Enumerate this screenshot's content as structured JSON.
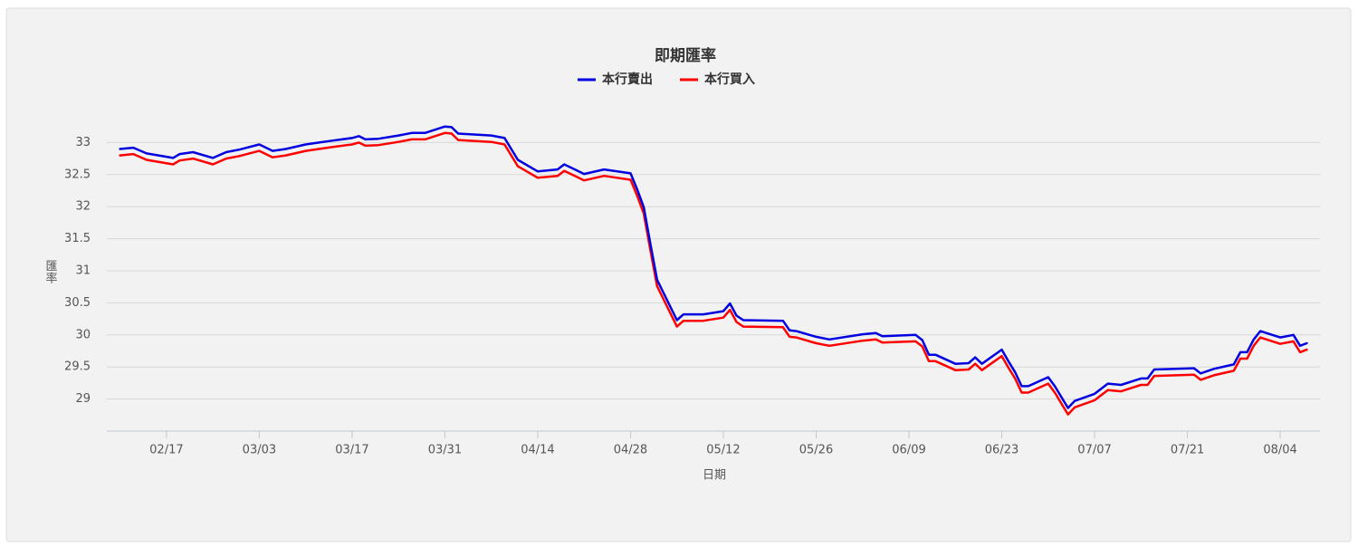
{
  "chart_data": {
    "type": "line",
    "title": "即期匯率",
    "x_label": "日期",
    "y_label": "匯率",
    "x": [
      "02/10",
      "02/12",
      "02/14",
      "02/18",
      "02/19",
      "02/21",
      "02/24",
      "02/26",
      "02/28",
      "03/03",
      "03/05",
      "03/07",
      "03/10",
      "03/12",
      "03/14",
      "03/17",
      "03/18",
      "03/19",
      "03/21",
      "03/24",
      "03/26",
      "03/28",
      "03/31",
      "04/01",
      "04/02",
      "04/07",
      "04/09",
      "04/10",
      "04/11",
      "04/14",
      "04/17",
      "04/18",
      "04/21",
      "04/24",
      "04/28",
      "04/29",
      "04/30",
      "05/01",
      "05/02",
      "05/05",
      "05/06",
      "05/09",
      "05/12",
      "05/13",
      "05/14",
      "05/15",
      "05/21",
      "05/22",
      "05/23",
      "05/26",
      "05/28",
      "06/02",
      "06/04",
      "06/05",
      "06/10",
      "06/11",
      "06/12",
      "06/13",
      "06/16",
      "06/18",
      "06/19",
      "06/20",
      "06/23",
      "06/24",
      "06/25",
      "06/26",
      "06/27",
      "06/30",
      "07/01",
      "07/02",
      "07/03",
      "07/04",
      "07/07",
      "07/09",
      "07/11",
      "07/14",
      "07/15",
      "07/16",
      "07/22",
      "07/23",
      "07/25",
      "07/28",
      "07/29",
      "07/30",
      "07/31",
      "08/01",
      "08/04",
      "08/06",
      "08/07",
      "08/08"
    ],
    "series": [
      {
        "name": "本行賣出",
        "color": "#0000e0",
        "values": [
          32.9,
          32.92,
          32.83,
          32.76,
          32.82,
          32.85,
          32.76,
          32.85,
          32.89,
          32.97,
          32.87,
          32.9,
          32.97,
          33.0,
          33.03,
          33.07,
          33.1,
          33.05,
          33.06,
          33.11,
          33.15,
          33.15,
          33.25,
          33.24,
          33.14,
          33.11,
          33.07,
          32.9,
          32.73,
          32.55,
          32.58,
          32.66,
          32.51,
          32.58,
          32.52,
          32.27,
          31.99,
          31.42,
          30.86,
          30.23,
          30.32,
          30.32,
          30.37,
          30.49,
          30.3,
          30.23,
          30.22,
          30.07,
          30.06,
          29.97,
          29.93,
          30.01,
          30.03,
          29.98,
          30.0,
          29.92,
          29.69,
          29.69,
          29.55,
          29.56,
          29.65,
          29.55,
          29.77,
          29.59,
          29.42,
          29.2,
          29.2,
          29.34,
          29.2,
          29.03,
          28.86,
          28.97,
          29.08,
          29.24,
          29.22,
          29.32,
          29.32,
          29.46,
          29.48,
          29.4,
          29.47,
          29.54,
          29.73,
          29.73,
          29.93,
          30.06,
          29.96,
          30.0,
          29.83,
          29.87
        ]
      },
      {
        "name": "本行買入",
        "color": "#ff0000",
        "values": [
          32.8,
          32.82,
          32.73,
          32.66,
          32.72,
          32.75,
          32.66,
          32.75,
          32.79,
          32.87,
          32.77,
          32.8,
          32.87,
          32.9,
          32.93,
          32.97,
          33.0,
          32.95,
          32.96,
          33.01,
          33.05,
          33.05,
          33.15,
          33.14,
          33.04,
          33.01,
          32.97,
          32.8,
          32.63,
          32.45,
          32.48,
          32.56,
          32.41,
          32.48,
          32.42,
          32.17,
          31.89,
          31.32,
          30.76,
          30.13,
          30.22,
          30.22,
          30.27,
          30.39,
          30.2,
          30.13,
          30.12,
          29.97,
          29.96,
          29.87,
          29.83,
          29.91,
          29.93,
          29.88,
          29.9,
          29.82,
          29.59,
          29.59,
          29.45,
          29.46,
          29.55,
          29.45,
          29.67,
          29.49,
          29.32,
          29.1,
          29.1,
          29.24,
          29.1,
          28.93,
          28.76,
          28.87,
          28.98,
          29.14,
          29.12,
          29.22,
          29.22,
          29.36,
          29.38,
          29.3,
          29.37,
          29.44,
          29.63,
          29.63,
          29.83,
          29.96,
          29.86,
          29.9,
          29.73,
          29.77
        ]
      }
    ],
    "xlim": [
      "02/08",
      "08/10"
    ],
    "xticks": [
      "02/17",
      "03/03",
      "03/17",
      "03/31",
      "04/14",
      "04/28",
      "05/12",
      "05/26",
      "06/09",
      "06/23",
      "07/07",
      "07/21",
      "08/04"
    ],
    "ylim": [
      28.5,
      33.5
    ],
    "yticks": [
      29,
      29.5,
      30,
      30.5,
      31,
      31.5,
      32,
      32.5,
      33
    ],
    "grid": true,
    "legend": "top"
  }
}
